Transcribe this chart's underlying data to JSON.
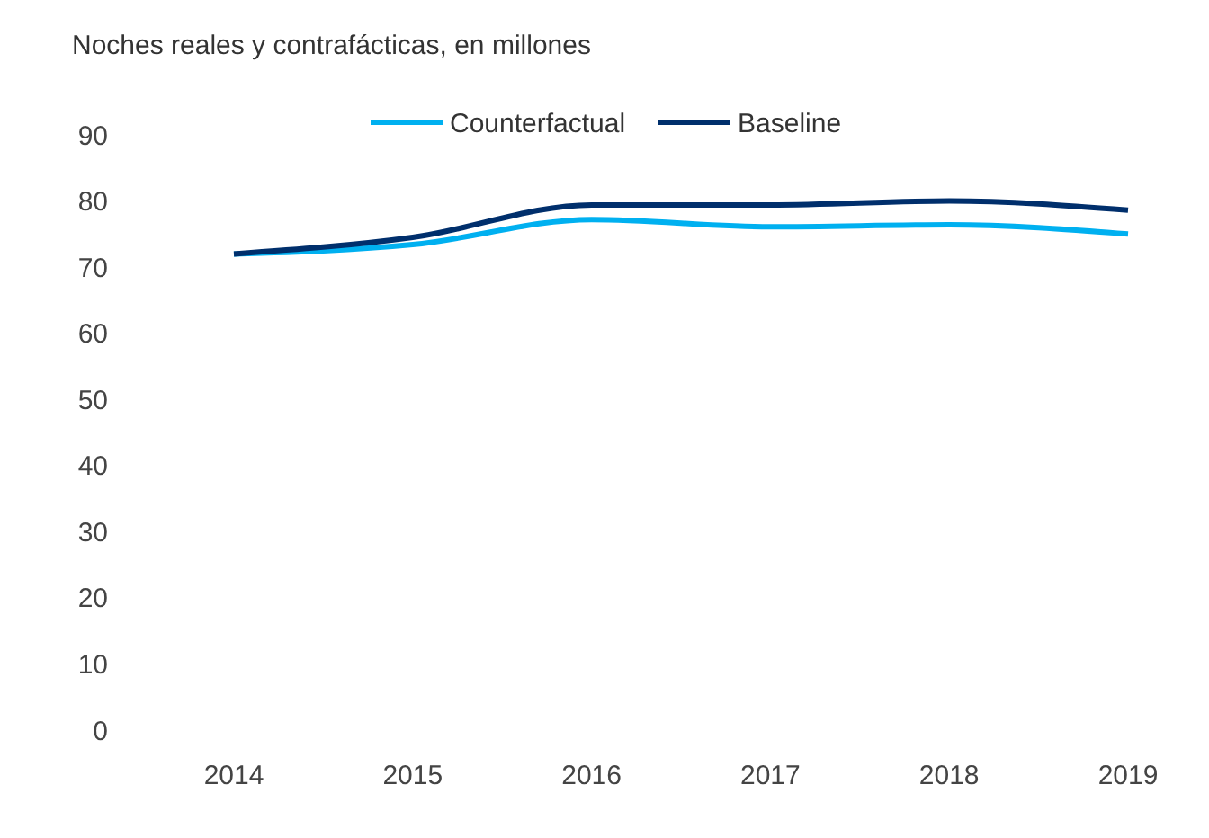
{
  "chart_data": {
    "type": "line",
    "title": "Noches reales y contrafácticas, en millones",
    "categories": [
      "2014",
      "2015",
      "2016",
      "2017",
      "2018",
      "2019"
    ],
    "series": [
      {
        "name": "Counterfactual",
        "color": "#00b0f0",
        "values": [
          72,
          73.4,
          77.2,
          76.1,
          76.4,
          75
        ]
      },
      {
        "name": "Baseline",
        "color": "#002f6c",
        "values": [
          72,
          74.5,
          79.4,
          79.4,
          80,
          78.6
        ]
      }
    ],
    "ylim": [
      0,
      90
    ],
    "yticks": [
      0,
      10,
      20,
      30,
      40,
      50,
      60,
      70,
      80,
      90
    ],
    "grid": false,
    "legend": "top",
    "marker": "none",
    "line_style": "solid"
  }
}
